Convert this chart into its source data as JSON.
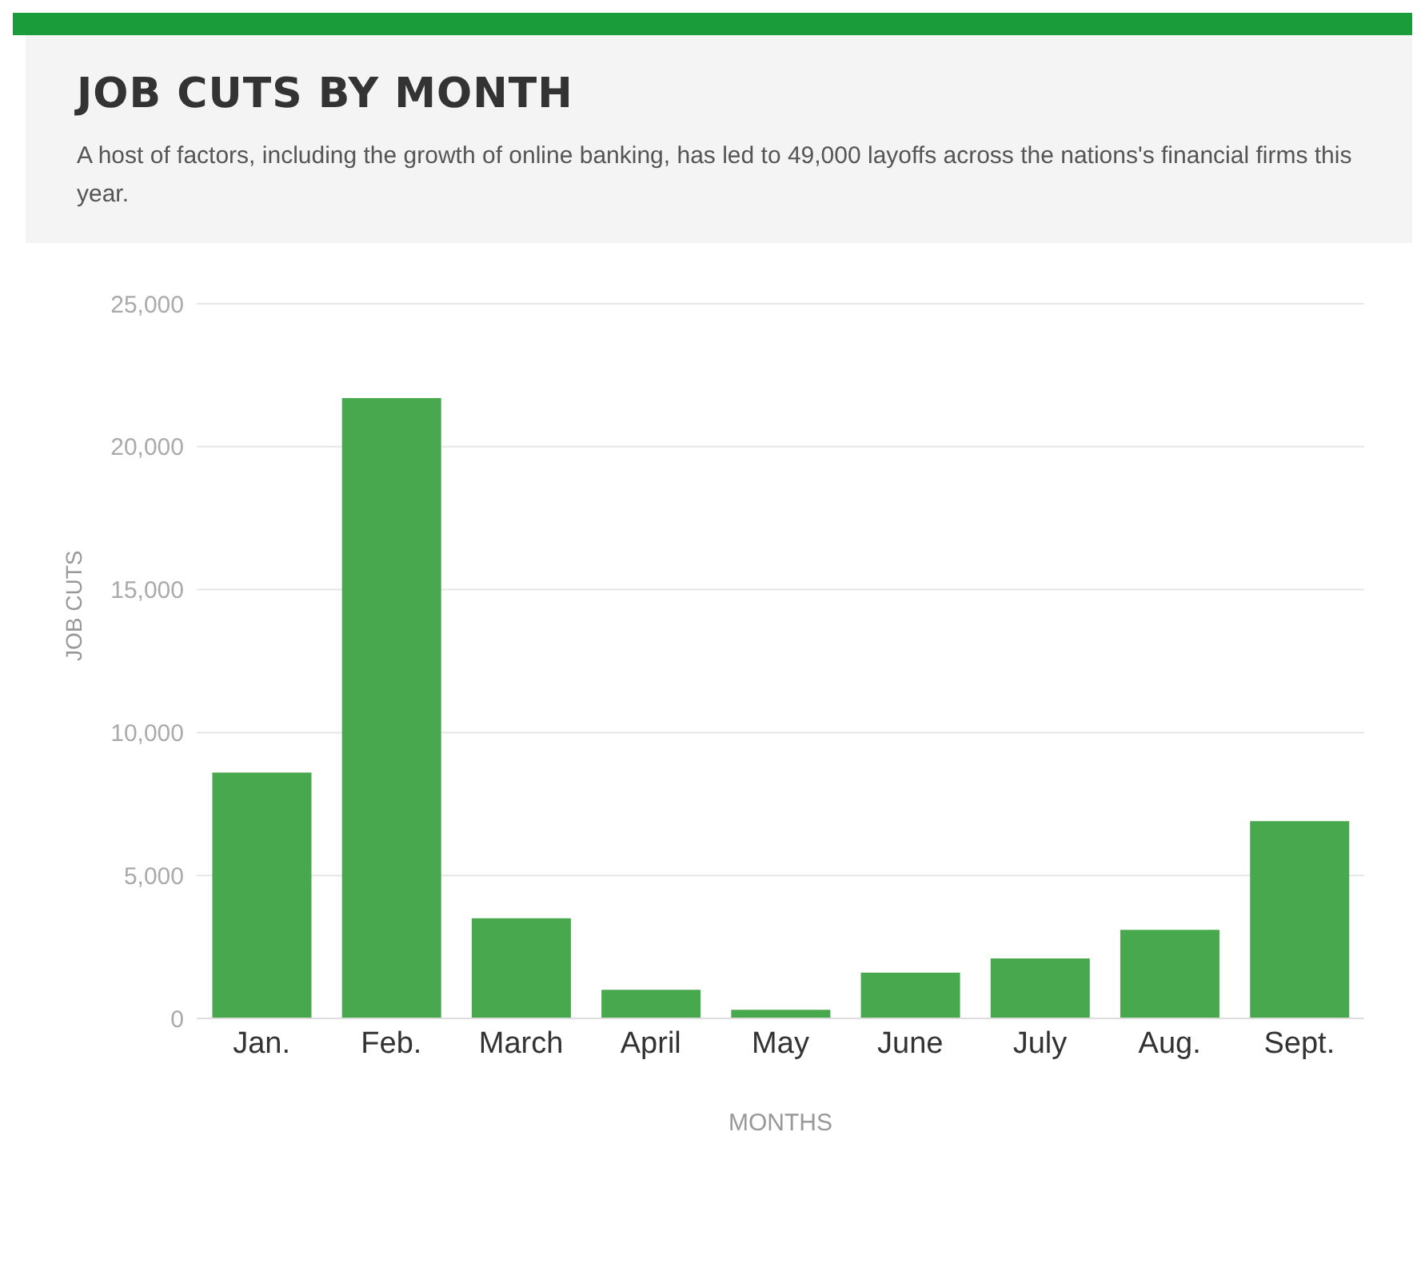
{
  "chart_data": {
    "type": "bar",
    "title": "JOB CUTS BY MONTH",
    "subtitle": "A host of factors, including the growth of online banking, has led to 49,000 layoffs across the nations's financial firms this year.",
    "xlabel": "MONTHS",
    "ylabel": "JOB CUTS",
    "categories": [
      "Jan.",
      "Feb.",
      "March",
      "April",
      "May",
      "June",
      "July",
      "Aug.",
      "Sept."
    ],
    "values": [
      8600,
      21700,
      3500,
      1000,
      300,
      1600,
      2100,
      3100,
      6900
    ],
    "color": "#47a84d",
    "ylim": [
      0,
      25000
    ],
    "yticks": [
      {
        "value": 0,
        "label": "0"
      },
      {
        "value": 5000,
        "label": "5,000"
      },
      {
        "value": 10000,
        "label": "10,000"
      },
      {
        "value": 15000,
        "label": "15,000"
      },
      {
        "value": 20000,
        "label": "20,000"
      },
      {
        "value": 25000,
        "label": "25,000"
      }
    ],
    "grid": "y",
    "legend": false
  }
}
